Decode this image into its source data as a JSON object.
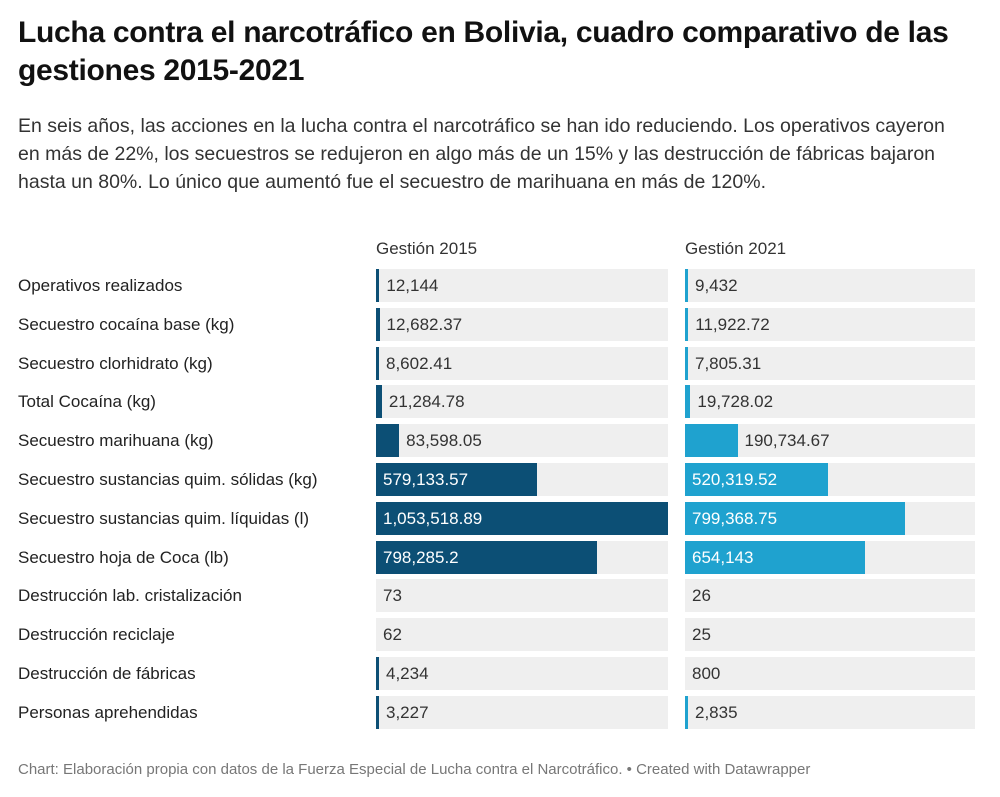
{
  "title": "Lucha contra el narcotráfico en Bolivia, cuadro comparativo de las gestiones 2015-2021",
  "description": "En seis años, las acciones en la lucha contra el narcotráfico se han ido reduciendo. Los operativos cayeron en más de 22%, los secuestros se redujeron en algo más de un 15% y las destrucción de fábricas bajaron hasta un 80%. Lo único que aumentó fue el secuestro de marihuana en más de 120%.",
  "footer": "Chart: Elaboración propia con datos de la Fuerza Especial de Lucha contra el Narcotráfico. • Created with Datawrapper",
  "colors": {
    "bar_2015": "#0c4f75",
    "bar_2021": "#1fa2cf",
    "cell_bg": "#efefef",
    "text_dark": "#333333",
    "text_light": "#ffffff"
  },
  "chart_data": {
    "type": "table",
    "title": "Lucha contra el narcotráfico en Bolivia, cuadro comparativo de las gestiones 2015-2021",
    "columns": [
      "",
      "Gestión 2015",
      "Gestión 2021"
    ],
    "categories": [
      "Operativos realizados",
      "Secuestro cocaína base (kg)",
      "Secuestro clorhidrato (kg)",
      "Total Cocaína (kg)",
      "Secuestro marihuana (kg)",
      "Secuestro sustancias quim. sólidas (kg)",
      "Secuestro sustancias quim. líquidas (l)",
      "Secuestro hoja de Coca (lb)",
      "Destrucción lab. cristalización",
      "Destrucción reciclaje",
      "Destrucción de fábricas",
      "Personas aprehendidas"
    ],
    "series": [
      {
        "name": "Gestión 2015",
        "values": [
          12144,
          12682.37,
          8602.41,
          21284.78,
          83598.05,
          579133.57,
          1053518.89,
          798285.2,
          73,
          62,
          4234,
          3227
        ],
        "labels": [
          "12,144",
          "12,682.37",
          "8,602.41",
          "21,284.78",
          "83,598.05",
          "579,133.57",
          "1,053,518.89",
          "798,285.2",
          "73",
          "62",
          "4,234",
          "3,227"
        ]
      },
      {
        "name": "Gestión 2021",
        "values": [
          9432,
          11922.72,
          7805.31,
          19728.02,
          190734.67,
          520319.52,
          799368.75,
          654143,
          26,
          25,
          800,
          2835
        ],
        "labels": [
          "9,432",
          "11,922.72",
          "7,805.31",
          "19,728.02",
          "190,734.67",
          "520,319.52",
          "799,368.75",
          "654,143",
          "26",
          "25",
          "800",
          "2,835"
        ]
      }
    ],
    "scale_max": 1053518.89
  }
}
